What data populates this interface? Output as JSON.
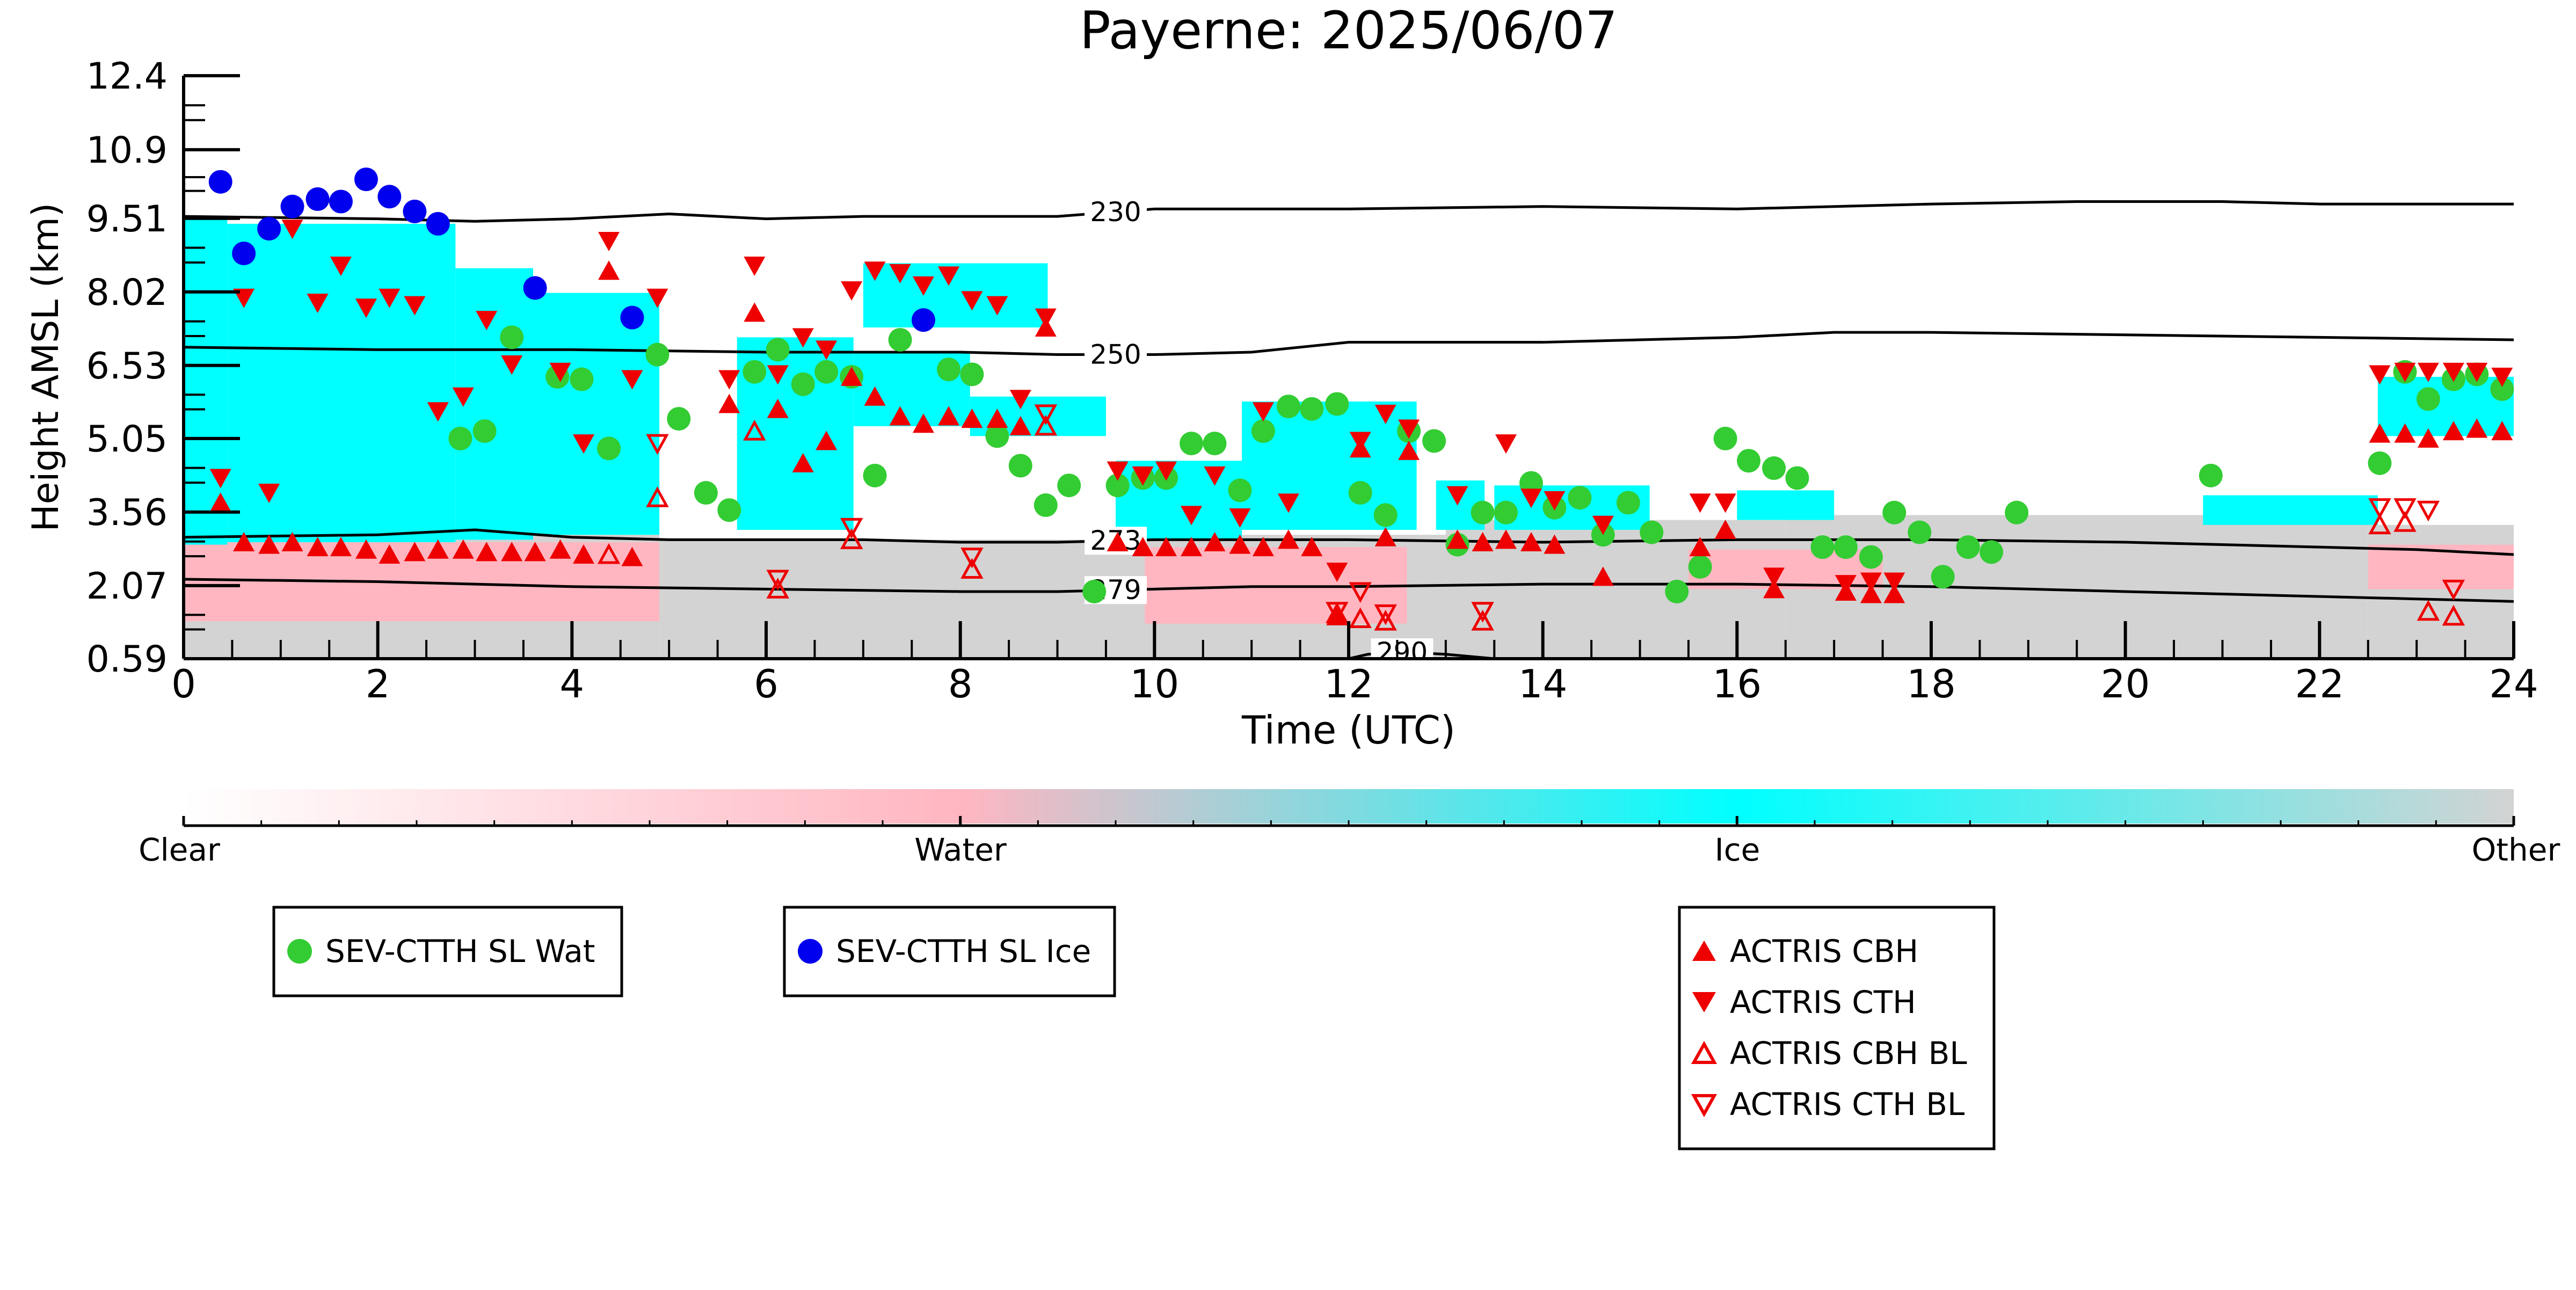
{
  "chart_data": {
    "type": "scatter",
    "title": "Payerne: 2025/06/07",
    "xlabel": "Time (UTC)",
    "ylabel": "Height AMSL (km)",
    "xlim": [
      0,
      24
    ],
    "ylim": [
      0.59,
      12.4
    ],
    "xticks": [
      "0",
      "2",
      "4",
      "6",
      "8",
      "10",
      "12",
      "14",
      "16",
      "18",
      "20",
      "22",
      "24"
    ],
    "yticks": [
      "0.59",
      "2.07",
      "3.56",
      "5.05",
      "6.53",
      "8.02",
      "9.51",
      "10.9",
      "12.4"
    ],
    "grid": false,
    "colorbar": {
      "labels": [
        "Clear",
        "Water",
        "Ice",
        "Other"
      ],
      "colors": [
        "#ffffff",
        "#ffb6c1",
        "#00ffff",
        "#d3d3d3"
      ]
    },
    "background_colors": {
      "water": "#ffb6c1",
      "ice": "#00ffff",
      "other": "#d3d3d3"
    },
    "contours": [
      {
        "label": "230",
        "label_x": 9.6,
        "x": [
          0,
          2,
          3,
          4,
          5,
          6,
          7,
          8,
          9,
          10,
          12,
          14,
          16,
          18,
          19.5,
          21,
          22,
          24
        ],
        "y": [
          9.55,
          9.5,
          9.45,
          9.5,
          9.6,
          9.5,
          9.55,
          9.55,
          9.55,
          9.7,
          9.7,
          9.75,
          9.7,
          9.8,
          9.85,
          9.85,
          9.8,
          9.8
        ]
      },
      {
        "label": "250",
        "label_x": 9.6,
        "x": [
          0,
          2,
          4,
          6,
          8,
          9,
          10,
          11,
          12,
          14,
          16,
          17,
          18,
          20,
          22,
          24
        ],
        "y": [
          6.9,
          6.85,
          6.85,
          6.8,
          6.8,
          6.75,
          6.75,
          6.8,
          7.0,
          7.0,
          7.1,
          7.2,
          7.2,
          7.15,
          7.1,
          7.05
        ]
      },
      {
        "label": "273",
        "label_x": 9.6,
        "x": [
          0,
          2,
          3,
          4,
          5,
          6,
          7,
          8,
          9,
          10,
          12,
          14,
          16,
          18,
          20,
          22,
          23,
          24
        ],
        "y": [
          3.05,
          3.1,
          3.2,
          3.05,
          3.0,
          3.0,
          3.0,
          2.95,
          2.95,
          3.0,
          3.0,
          2.95,
          3.0,
          3.0,
          2.95,
          2.85,
          2.8,
          2.7
        ]
      },
      {
        "label": "279",
        "label_x": 9.6,
        "x": [
          0,
          2,
          4,
          6,
          8,
          9,
          10,
          11,
          12,
          14,
          16,
          18,
          20,
          22,
          23,
          24
        ],
        "y": [
          2.2,
          2.15,
          2.05,
          2.0,
          1.95,
          1.95,
          2.0,
          2.05,
          2.05,
          2.1,
          2.1,
          2.05,
          1.95,
          1.85,
          1.8,
          1.75
        ]
      },
      {
        "label": "290",
        "label_x": 12.55,
        "x": [
          12.0,
          12.2,
          12.55,
          13.0,
          13.5
        ],
        "y": [
          0.59,
          0.68,
          0.72,
          0.68,
          0.59
        ]
      }
    ],
    "series": [
      {
        "name": "SEV-CTTH SL Wat",
        "marker": "circle",
        "color": "#33cc33",
        "x": [
          2.85,
          3.1,
          3.38,
          3.85,
          4.1,
          4.38,
          4.88,
          5.1,
          5.38,
          5.62,
          5.88,
          6.12,
          6.38,
          6.62,
          6.88,
          7.12,
          7.38,
          7.88,
          8.12,
          8.38,
          8.62,
          8.88,
          9.12,
          9.38,
          9.62,
          9.88,
          10.12,
          10.38,
          10.62,
          10.88,
          11.12,
          11.38,
          11.62,
          11.88,
          12.12,
          12.38,
          12.62,
          12.88,
          13.12,
          13.38,
          13.62,
          13.88,
          14.12,
          14.38,
          14.62,
          14.88,
          15.12,
          15.38,
          15.62,
          15.88,
          16.12,
          16.38,
          16.62,
          16.88,
          17.12,
          17.38,
          17.62,
          17.88,
          18.12,
          18.38,
          18.62,
          18.88,
          20.88,
          22.62,
          22.88,
          23.12,
          23.38,
          23.62,
          23.88
        ],
        "y": [
          5.05,
          5.2,
          7.1,
          6.3,
          6.25,
          4.85,
          6.75,
          5.45,
          3.95,
          3.6,
          6.4,
          6.85,
          6.15,
          6.4,
          6.3,
          4.3,
          7.05,
          6.45,
          6.35,
          5.1,
          4.5,
          3.7,
          4.1,
          1.95,
          4.1,
          4.25,
          4.25,
          4.95,
          4.95,
          4.0,
          5.2,
          5.7,
          5.65,
          5.75,
          3.95,
          3.5,
          5.2,
          5.0,
          2.9,
          3.55,
          3.55,
          4.15,
          3.65,
          3.85,
          3.1,
          3.75,
          3.15,
          1.95,
          2.45,
          5.05,
          4.6,
          4.45,
          4.25,
          2.85,
          2.85,
          2.65,
          3.55,
          3.15,
          2.25,
          2.85,
          2.75,
          3.55,
          4.3,
          4.55,
          6.4,
          5.85,
          6.25,
          6.35,
          6.05
        ]
      },
      {
        "name": "SEV-CTTH SL Ice",
        "marker": "circle",
        "color": "#0000ee",
        "x": [
          0.38,
          0.62,
          0.88,
          1.12,
          1.38,
          1.62,
          1.88,
          2.12,
          2.38,
          2.62,
          3.62,
          4.62,
          7.62
        ],
        "y": [
          10.25,
          8.8,
          9.3,
          9.75,
          9.9,
          9.85,
          10.3,
          9.95,
          9.65,
          9.4,
          8.1,
          7.5,
          7.45
        ]
      },
      {
        "name": "ACTRIS CBH",
        "marker": "triangle-up",
        "color": "#ee0000",
        "x": [
          0.38,
          0.62,
          0.88,
          1.12,
          1.38,
          1.62,
          1.88,
          2.12,
          2.38,
          2.62,
          2.88,
          3.12,
          3.38,
          3.62,
          3.88,
          4.12,
          4.38,
          4.62,
          5.62,
          5.88,
          6.12,
          6.38,
          6.62,
          6.88,
          7.12,
          7.38,
          7.62,
          7.88,
          8.12,
          8.38,
          8.62,
          8.88,
          9.62,
          9.88,
          10.12,
          10.38,
          10.62,
          10.88,
          11.12,
          11.38,
          11.62,
          11.88,
          12.12,
          12.38,
          12.62,
          13.12,
          13.38,
          13.62,
          13.88,
          14.12,
          14.62,
          15.62,
          15.88,
          16.38,
          17.12,
          17.38,
          17.62,
          22.62,
          22.88,
          23.12,
          23.38,
          23.62,
          23.88
        ],
        "y": [
          3.75,
          2.95,
          2.9,
          2.95,
          2.85,
          2.85,
          2.8,
          2.7,
          2.75,
          2.8,
          2.8,
          2.75,
          2.75,
          2.75,
          2.8,
          2.7,
          8.45,
          2.65,
          5.75,
          7.6,
          5.65,
          4.55,
          5.0,
          6.3,
          5.9,
          5.5,
          5.35,
          5.5,
          5.45,
          5.45,
          5.3,
          7.3,
          2.95,
          2.85,
          2.85,
          2.85,
          2.95,
          2.9,
          2.85,
          3.0,
          2.85,
          1.45,
          4.85,
          3.05,
          4.8,
          3.0,
          2.95,
          3.0,
          2.95,
          2.9,
          2.25,
          2.85,
          3.2,
          2.0,
          1.95,
          1.9,
          1.9,
          5.15,
          5.15,
          5.05,
          5.2,
          5.25,
          5.2
        ]
      },
      {
        "name": "ACTRIS CTH",
        "marker": "triangle-down",
        "color": "#ee0000",
        "x": [
          0.38,
          0.62,
          0.88,
          1.12,
          1.38,
          1.62,
          1.88,
          2.12,
          2.38,
          2.62,
          2.88,
          3.12,
          3.38,
          3.88,
          4.12,
          4.38,
          4.62,
          4.88,
          5.62,
          5.88,
          6.12,
          6.38,
          6.62,
          6.88,
          7.12,
          7.38,
          7.62,
          7.88,
          8.12,
          8.38,
          8.62,
          8.88,
          9.62,
          9.88,
          10.12,
          10.38,
          10.62,
          10.88,
          11.12,
          11.38,
          11.88,
          12.12,
          12.38,
          12.62,
          13.12,
          13.62,
          13.88,
          14.12,
          14.62,
          15.62,
          15.88,
          16.38,
          17.12,
          17.38,
          17.62,
          22.62,
          22.88,
          23.12,
          23.38,
          23.62,
          23.88
        ],
        "y": [
          4.25,
          7.9,
          3.95,
          9.3,
          7.8,
          8.55,
          7.7,
          7.9,
          7.75,
          5.6,
          5.9,
          7.45,
          6.55,
          6.4,
          4.95,
          9.05,
          6.25,
          7.9,
          6.25,
          8.55,
          6.35,
          7.1,
          6.85,
          8.05,
          8.45,
          8.4,
          8.15,
          8.35,
          7.85,
          7.75,
          5.85,
          7.5,
          4.4,
          4.3,
          4.4,
          3.5,
          4.3,
          3.45,
          5.6,
          3.75,
          2.35,
          5.0,
          5.55,
          5.25,
          3.9,
          4.95,
          3.85,
          3.8,
          3.3,
          3.75,
          3.75,
          2.25,
          2.1,
          2.15,
          2.15,
          6.35,
          6.4,
          6.4,
          6.4,
          6.4,
          6.3
        ]
      },
      {
        "name": "ACTRIS CBH BL",
        "marker": "triangle-up-open",
        "color": "#ee0000",
        "x": [
          4.38,
          4.88,
          5.88,
          6.12,
          6.88,
          8.12,
          8.88,
          11.88,
          12.12,
          12.38,
          13.38,
          22.62,
          22.88,
          23.12,
          23.38
        ],
        "y": [
          2.7,
          3.85,
          5.2,
          2.0,
          3.0,
          2.4,
          5.3,
          1.5,
          1.4,
          1.35,
          1.35,
          3.3,
          3.35,
          1.55,
          1.45
        ]
      },
      {
        "name": "ACTRIS CTH BL",
        "marker": "triangle-down-open",
        "color": "#ee0000",
        "x": [
          4.88,
          6.12,
          6.88,
          8.12,
          8.88,
          11.88,
          12.12,
          12.38,
          13.38,
          22.62,
          22.88,
          23.12,
          23.38
        ],
        "y": [
          4.95,
          2.2,
          3.25,
          2.65,
          5.55,
          1.55,
          1.95,
          1.5,
          1.55,
          3.65,
          3.65,
          3.6,
          2.0
        ]
      }
    ]
  }
}
